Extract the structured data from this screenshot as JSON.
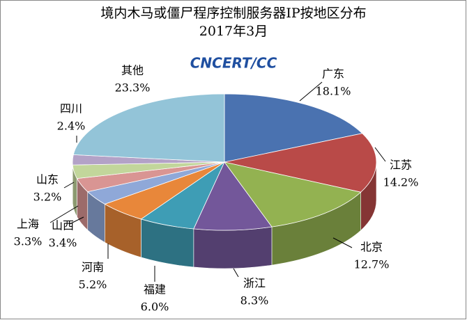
{
  "chart_data": {
    "type": "pie3d",
    "title": "境内木马或僵尸程序控制服务器IP按地区分布",
    "subtitle": "2017年3月",
    "logo": "CNCERT/CC",
    "categories": [
      "广东",
      "江苏",
      "北京",
      "浙江",
      "福建",
      "河南",
      "山西",
      "上海",
      "山东",
      "四川",
      "其他"
    ],
    "values": [
      18.1,
      14.2,
      12.7,
      8.3,
      6.0,
      5.2,
      3.4,
      3.3,
      3.2,
      2.4,
      23.3
    ],
    "value_labels": [
      "18.1%",
      "14.2%",
      "12.7%",
      "8.3%",
      "6.0%",
      "5.2%",
      "3.4%",
      "3.3%",
      "3.2%",
      "2.4%",
      "23.3%"
    ],
    "colors": [
      "#4a72b0",
      "#b94a48",
      "#93b251",
      "#73579a",
      "#3e9db5",
      "#e8873a",
      "#8fa8d8",
      "#d99593",
      "#c2d69b",
      "#b3a2c7",
      "#93c4d8"
    ]
  }
}
